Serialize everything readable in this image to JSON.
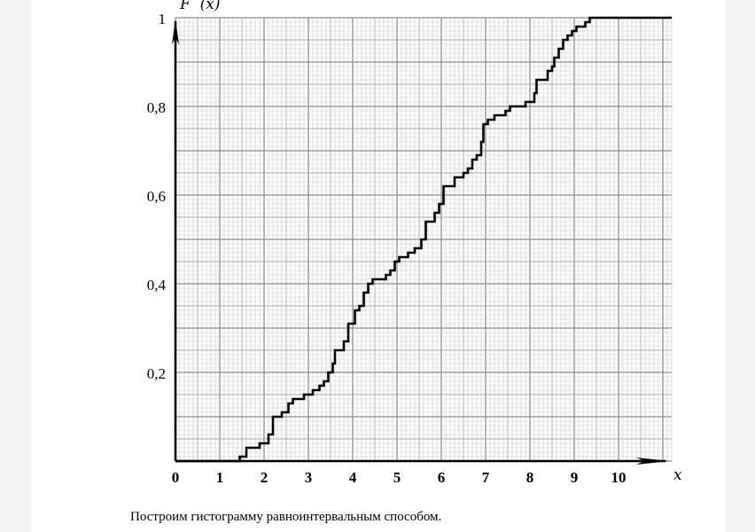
{
  "chart_data": {
    "type": "line",
    "subtype": "step",
    "ylabel": "F  (x)",
    "xlabel": "x",
    "y_tick_labels": [
      "0,2",
      "0,4",
      "0,6",
      "0,8",
      "1"
    ],
    "x_tick_labels": [
      "0",
      "1",
      "2",
      "3",
      "4",
      "5",
      "6",
      "7",
      "8",
      "9",
      "10"
    ],
    "xlim": [
      0,
      11.2
    ],
    "ylim": [
      0,
      1
    ],
    "grid": true,
    "steps": [
      [
        0,
        0
      ],
      [
        1.45,
        0.01
      ],
      [
        1.6,
        0.03
      ],
      [
        1.9,
        0.04
      ],
      [
        2.1,
        0.06
      ],
      [
        2.2,
        0.1
      ],
      [
        2.4,
        0.11
      ],
      [
        2.55,
        0.13
      ],
      [
        2.65,
        0.14
      ],
      [
        2.9,
        0.15
      ],
      [
        3.1,
        0.16
      ],
      [
        3.25,
        0.17
      ],
      [
        3.35,
        0.18
      ],
      [
        3.45,
        0.2
      ],
      [
        3.55,
        0.22
      ],
      [
        3.6,
        0.25
      ],
      [
        3.8,
        0.27
      ],
      [
        3.9,
        0.31
      ],
      [
        4.05,
        0.34
      ],
      [
        4.15,
        0.35
      ],
      [
        4.25,
        0.38
      ],
      [
        4.35,
        0.4
      ],
      [
        4.45,
        0.41
      ],
      [
        4.75,
        0.42
      ],
      [
        4.85,
        0.43
      ],
      [
        4.95,
        0.45
      ],
      [
        5.05,
        0.46
      ],
      [
        5.25,
        0.47
      ],
      [
        5.4,
        0.48
      ],
      [
        5.55,
        0.5
      ],
      [
        5.65,
        0.54
      ],
      [
        5.85,
        0.56
      ],
      [
        5.95,
        0.58
      ],
      [
        6.05,
        0.62
      ],
      [
        6.3,
        0.64
      ],
      [
        6.5,
        0.65
      ],
      [
        6.6,
        0.66
      ],
      [
        6.7,
        0.68
      ],
      [
        6.8,
        0.69
      ],
      [
        6.9,
        0.72
      ],
      [
        6.95,
        0.76
      ],
      [
        7.05,
        0.77
      ],
      [
        7.2,
        0.78
      ],
      [
        7.45,
        0.79
      ],
      [
        7.55,
        0.8
      ],
      [
        7.9,
        0.81
      ],
      [
        8.1,
        0.83
      ],
      [
        8.15,
        0.86
      ],
      [
        8.4,
        0.88
      ],
      [
        8.5,
        0.89
      ],
      [
        8.55,
        0.91
      ],
      [
        8.65,
        0.93
      ],
      [
        8.75,
        0.95
      ],
      [
        8.85,
        0.96
      ],
      [
        8.95,
        0.97
      ],
      [
        9.05,
        0.98
      ],
      [
        9.25,
        0.99
      ],
      [
        9.35,
        1.0
      ],
      [
        11.2,
        1.0
      ]
    ]
  },
  "caption": "Построим гистограмму равноинтервальным способом."
}
